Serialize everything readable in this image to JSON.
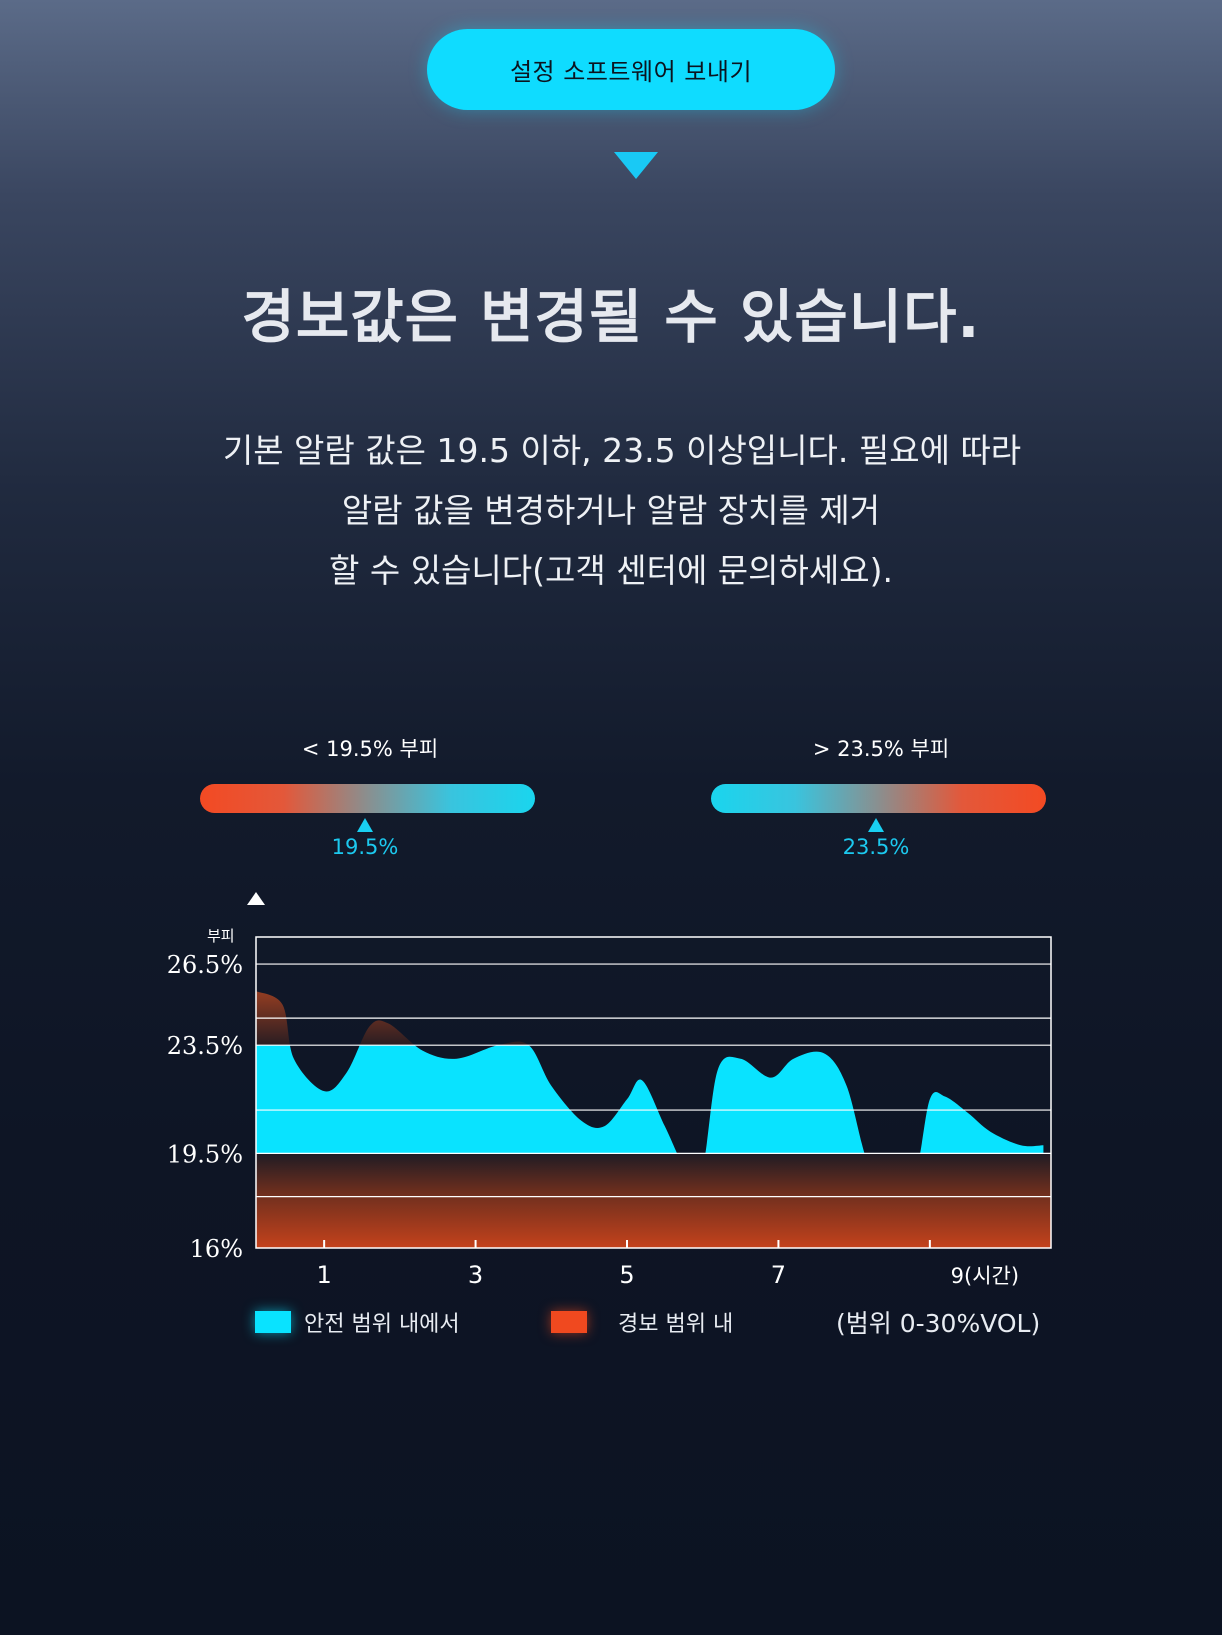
{
  "header": {
    "button_label": "설정 소프트웨어 보내기"
  },
  "headline": "경보값은 변경될 수 있습니다.",
  "description": {
    "line1": "기본 알람 값은 19.5 이하, 23.5 이상입니다. 필요에 따라",
    "line2": "알람 값을 변경하거나 알람 장치를 제거",
    "line3": "할 수 있습니다(고객 센터에 문의하세요)."
  },
  "gauges": {
    "low": {
      "label": "< 19.5% 부피",
      "marker_value": "19.5%"
    },
    "high": {
      "label": "> 23.5% 부피",
      "marker_value": "23.5%"
    }
  },
  "colors": {
    "accent": "#0fdcff",
    "safe": "#09e3ff",
    "alarm": "#f0491f",
    "background": "#0e1525"
  },
  "legend": {
    "safe_label": "안전 범위 내에서",
    "alarm_label": "경보 범위 내",
    "range_note": "(범위 0-30%VOL)"
  },
  "chart_data": {
    "type": "area",
    "title": "",
    "ylabel": "부피",
    "xlabel": "",
    "x_ticks": [
      "1",
      "3",
      "5",
      "7",
      "9(시간)"
    ],
    "x_tick_values": [
      1,
      3,
      5,
      7,
      9
    ],
    "y_ticks": [
      "26.5%",
      "23.5%",
      "19.5%",
      "16%"
    ],
    "ylim": [
      16,
      27.5
    ],
    "xlim": [
      0.1,
      10.6
    ],
    "grid": true,
    "safe_band": [
      19.5,
      23.5
    ],
    "series": [
      {
        "name": "부피",
        "x": [
          0.1,
          0.45,
          0.6,
          1.0,
          1.3,
          1.6,
          1.85,
          2.3,
          2.75,
          3.3,
          3.7,
          4.0,
          4.4,
          4.7,
          5.0,
          5.2,
          5.5,
          5.8,
          6.0,
          6.2,
          6.5,
          6.9,
          7.2,
          7.6,
          7.9,
          8.2,
          8.5,
          8.8,
          9.0,
          9.2,
          9.5,
          9.8,
          10.2,
          10.5
        ],
        "y": [
          25.5,
          25.0,
          23.0,
          21.8,
          22.5,
          24.2,
          24.3,
          23.3,
          23.0,
          23.5,
          23.5,
          22.0,
          20.7,
          20.5,
          21.5,
          22.2,
          20.5,
          18.8,
          19.0,
          22.6,
          23.0,
          22.3,
          23.0,
          23.2,
          22.0,
          19.0,
          18.6,
          18.7,
          21.5,
          21.6,
          21.0,
          20.3,
          19.8,
          19.8
        ]
      }
    ],
    "legend_position": "bottom"
  }
}
